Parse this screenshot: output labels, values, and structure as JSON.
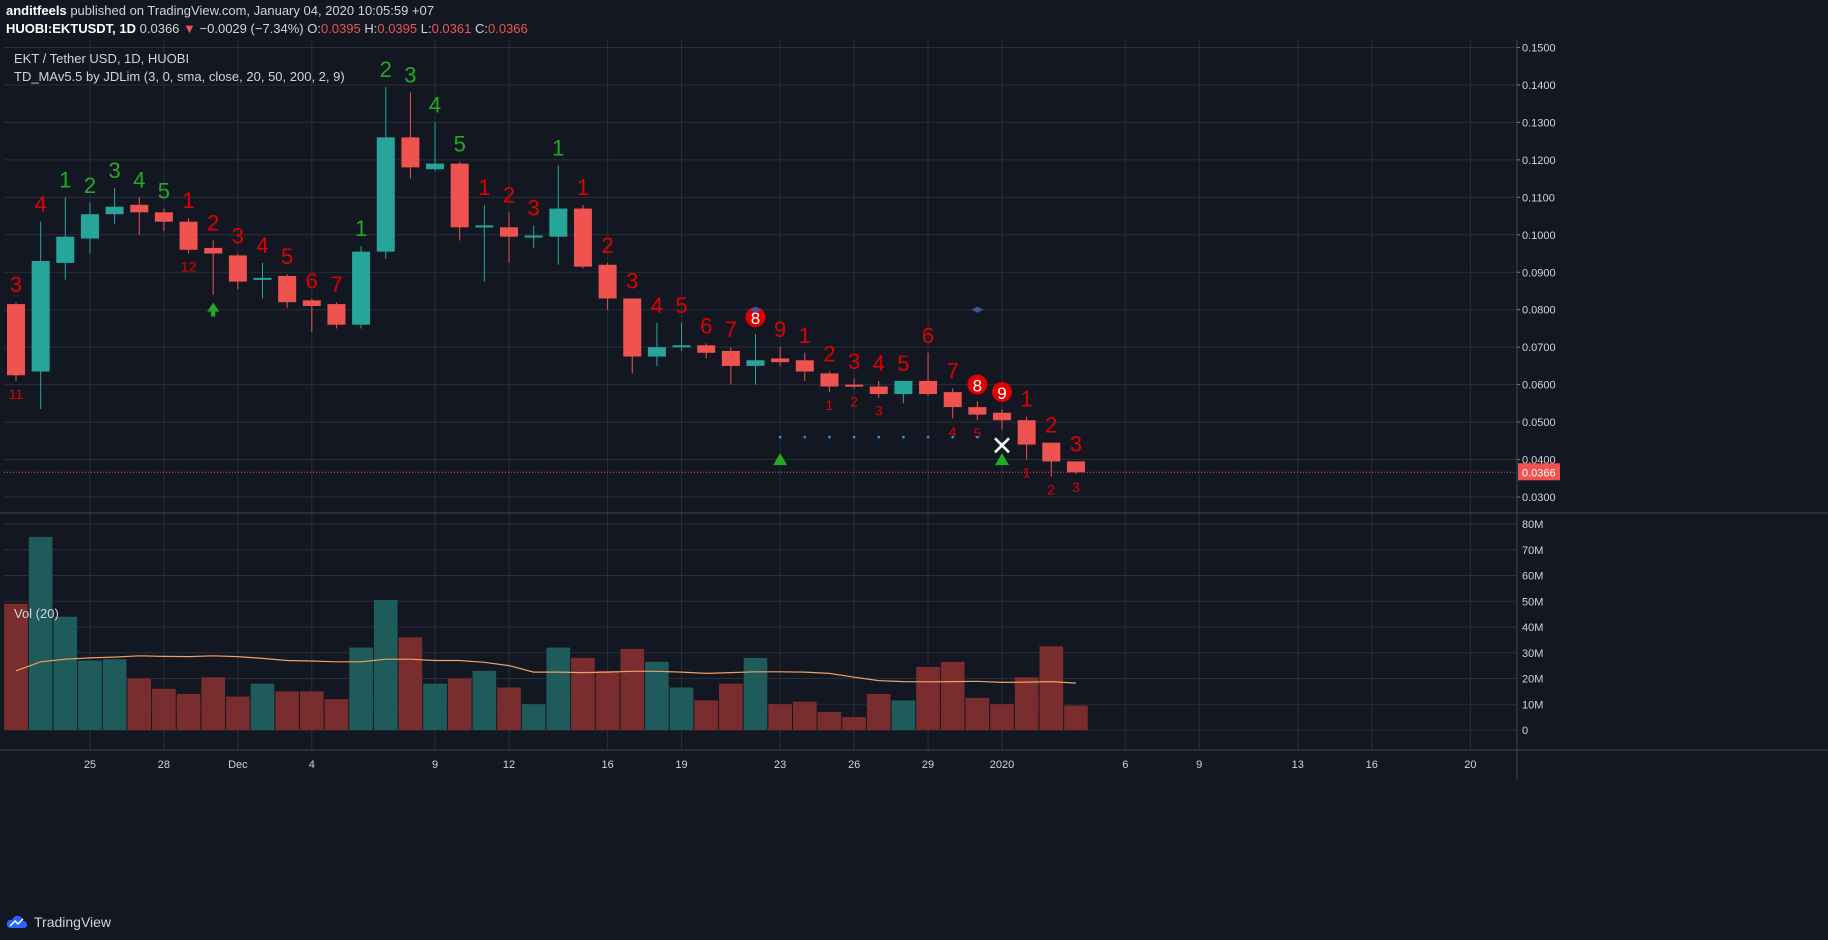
{
  "header": {
    "author": "anditfeels",
    "published_text": "published on TradingView.com, January 04, 2020 10:05:59 +07",
    "symbol": "HUOBI:EKTUSDT, 1D",
    "last": "0.0366",
    "change_arrow": "▼",
    "change": "−0.0029 (−7.34%)",
    "o_label": "O:",
    "o": "0.0395",
    "h_label": "H:",
    "h": "0.0395",
    "l_label": "L:",
    "l": "0.0361",
    "c_label": "C:",
    "c": "0.0366"
  },
  "legend": {
    "title": "EKT / Tether USD, 1D, HUOBI",
    "indicator": "TD_MAv5.5 by JDLim (3, 0, sma, close, 20, 50, 200, 2, 9)",
    "volume": "Vol (20)"
  },
  "footer": {
    "brand": "TradingView"
  },
  "colors": {
    "background": "#131722",
    "up": "#26a69a",
    "down": "#ef5350",
    "grid": "#2a2e39",
    "green_count": "#22ab22",
    "red_count": "#e00000",
    "ma": "#f0a060"
  },
  "chart_data": {
    "type": "candlestick",
    "price_axis": {
      "ylim": [
        0.026,
        0.152
      ],
      "ticks": [
        0.03,
        0.04,
        0.05,
        0.06,
        0.07,
        0.08,
        0.09,
        0.1,
        0.11,
        0.12,
        0.13,
        0.14,
        0.15
      ],
      "tick_labels": [
        "0.0300",
        "0.0400",
        "0.0500",
        "0.0600",
        "0.0700",
        "0.0800",
        "0.0900",
        "0.1000",
        "0.1100",
        "0.1200",
        "0.1300",
        "0.1400",
        "0.1500"
      ],
      "last_price_label": "0.0366",
      "last_price": 0.0366
    },
    "volume_axis": {
      "ylim": [
        0,
        80
      ],
      "ticks": [
        0,
        10,
        20,
        30,
        40,
        50,
        60,
        70,
        80
      ],
      "tick_labels": [
        "0",
        "10M",
        "20M",
        "30M",
        "40M",
        "50M",
        "60M",
        "70M",
        "80M"
      ]
    },
    "x_labels": [
      {
        "i": 3,
        "label": "25"
      },
      {
        "i": 6,
        "label": "28"
      },
      {
        "i": 9,
        "label": "Dec"
      },
      {
        "i": 12,
        "label": "4"
      },
      {
        "i": 17,
        "label": "9"
      },
      {
        "i": 20,
        "label": "12"
      },
      {
        "i": 24,
        "label": "16"
      },
      {
        "i": 27,
        "label": "19"
      },
      {
        "i": 31,
        "label": "23"
      },
      {
        "i": 34,
        "label": "26"
      },
      {
        "i": 37,
        "label": "29"
      },
      {
        "i": 40,
        "label": "2020"
      },
      {
        "i": 45,
        "label": "6"
      },
      {
        "i": 48,
        "label": "9"
      },
      {
        "i": 52,
        "label": "13"
      },
      {
        "i": 55,
        "label": "16"
      },
      {
        "i": 59,
        "label": "20"
      }
    ],
    "candles": [
      {
        "o": 0.0815,
        "h": 0.082,
        "l": 0.061,
        "c": 0.0625,
        "v": 49,
        "ma": 23,
        "top": "3",
        "tc": "r",
        "bot": "11",
        "bc": "r"
      },
      {
        "o": 0.0635,
        "h": 0.1035,
        "l": 0.0535,
        "c": 0.093,
        "v": 75,
        "ma": 26.5,
        "top": "4",
        "tc": "r"
      },
      {
        "o": 0.0925,
        "h": 0.11,
        "l": 0.088,
        "c": 0.0995,
        "v": 44,
        "ma": 27.5,
        "top": "1",
        "tc": "g"
      },
      {
        "o": 0.099,
        "h": 0.1085,
        "l": 0.095,
        "c": 0.1055,
        "v": 27,
        "ma": 28,
        "top": "2",
        "tc": "g"
      },
      {
        "o": 0.1055,
        "h": 0.1125,
        "l": 0.103,
        "c": 0.1075,
        "v": 27.5,
        "ma": 28.3,
        "top": "3",
        "tc": "g"
      },
      {
        "o": 0.108,
        "h": 0.11,
        "l": 0.1,
        "c": 0.106,
        "v": 20,
        "ma": 28.8,
        "top": "4",
        "tc": "g"
      },
      {
        "o": 0.106,
        "h": 0.107,
        "l": 0.101,
        "c": 0.1035,
        "v": 16,
        "ma": 28.6,
        "top": "5",
        "tc": "g"
      },
      {
        "o": 0.1035,
        "h": 0.1045,
        "l": 0.095,
        "c": 0.096,
        "v": 14,
        "ma": 28.5,
        "top": "1",
        "tc": "r",
        "bot": "12",
        "bc": "r"
      },
      {
        "o": 0.0965,
        "h": 0.0985,
        "l": 0.084,
        "c": 0.095,
        "v": 20.5,
        "ma": 28.8,
        "top": "2",
        "tc": "r"
      },
      {
        "o": 0.0945,
        "h": 0.095,
        "l": 0.0855,
        "c": 0.0875,
        "v": 13,
        "ma": 28.5,
        "top": "3",
        "tc": "r"
      },
      {
        "o": 0.088,
        "h": 0.0925,
        "l": 0.083,
        "c": 0.0885,
        "v": 18,
        "ma": 27.8,
        "top": "4",
        "tc": "r"
      },
      {
        "o": 0.089,
        "h": 0.0895,
        "l": 0.0805,
        "c": 0.082,
        "v": 15,
        "ma": 27,
        "top": "5",
        "tc": "r"
      },
      {
        "o": 0.0825,
        "h": 0.083,
        "l": 0.074,
        "c": 0.081,
        "v": 15,
        "ma": 26.8,
        "top": "6",
        "tc": "r"
      },
      {
        "o": 0.0815,
        "h": 0.082,
        "l": 0.075,
        "c": 0.076,
        "v": 12,
        "ma": 26.5,
        "top": "7",
        "tc": "r"
      },
      {
        "o": 0.076,
        "h": 0.097,
        "l": 0.075,
        "c": 0.0955,
        "v": 32,
        "ma": 26.5,
        "top": "1",
        "tc": "g"
      },
      {
        "o": 0.0955,
        "h": 0.1395,
        "l": 0.0935,
        "c": 0.126,
        "v": 50.5,
        "ma": 27.5,
        "top": "2",
        "tc": "g"
      },
      {
        "o": 0.126,
        "h": 0.138,
        "l": 0.115,
        "c": 0.118,
        "v": 36,
        "ma": 27.5,
        "top": "3",
        "tc": "g"
      },
      {
        "o": 0.1175,
        "h": 0.13,
        "l": 0.117,
        "c": 0.119,
        "v": 18,
        "ma": 27,
        "top": "4",
        "tc": "g"
      },
      {
        "o": 0.119,
        "h": 0.1195,
        "l": 0.0985,
        "c": 0.102,
        "v": 20,
        "ma": 27,
        "top": "5",
        "tc": "g"
      },
      {
        "o": 0.102,
        "h": 0.108,
        "l": 0.0875,
        "c": 0.1025,
        "v": 23,
        "ma": 26.3,
        "top": "1",
        "tc": "r"
      },
      {
        "o": 0.102,
        "h": 0.106,
        "l": 0.0925,
        "c": 0.0995,
        "v": 16.5,
        "ma": 25,
        "top": "2",
        "tc": "r"
      },
      {
        "o": 0.0995,
        "h": 0.1025,
        "l": 0.0965,
        "c": 0.0998,
        "v": 10,
        "ma": 22.5,
        "top": "3",
        "tc": "r"
      },
      {
        "o": 0.0995,
        "h": 0.1185,
        "l": 0.092,
        "c": 0.107,
        "v": 32,
        "ma": 22.5,
        "top": "1",
        "tc": "g"
      },
      {
        "o": 0.107,
        "h": 0.108,
        "l": 0.091,
        "c": 0.0915,
        "v": 28,
        "ma": 22.3,
        "top": "1",
        "tc": "r"
      },
      {
        "o": 0.092,
        "h": 0.0925,
        "l": 0.08,
        "c": 0.083,
        "v": 23,
        "ma": 22.5,
        "top": "2",
        "tc": "r"
      },
      {
        "o": 0.083,
        "h": 0.083,
        "l": 0.063,
        "c": 0.0675,
        "v": 31.5,
        "ma": 22.8,
        "top": "3",
        "tc": "r"
      },
      {
        "o": 0.0675,
        "h": 0.0765,
        "l": 0.065,
        "c": 0.07,
        "v": 26.5,
        "ma": 22.8,
        "top": "4",
        "tc": "r"
      },
      {
        "o": 0.07,
        "h": 0.0765,
        "l": 0.069,
        "c": 0.0705,
        "v": 16.5,
        "ma": 22.5,
        "top": "5",
        "tc": "r"
      },
      {
        "o": 0.0705,
        "h": 0.071,
        "l": 0.067,
        "c": 0.0685,
        "v": 11.5,
        "ma": 22,
        "top": "6",
        "tc": "r"
      },
      {
        "o": 0.069,
        "h": 0.07,
        "l": 0.06,
        "c": 0.065,
        "v": 18,
        "ma": 22.3,
        "top": "7",
        "tc": "r"
      },
      {
        "o": 0.065,
        "h": 0.0735,
        "l": 0.06,
        "c": 0.0665,
        "v": 28,
        "ma": 22.6,
        "top": "8",
        "tc": "r",
        "circle": true
      },
      {
        "o": 0.067,
        "h": 0.07,
        "l": 0.065,
        "c": 0.066,
        "v": 10,
        "ma": 22.6,
        "top": "9",
        "tc": "r"
      },
      {
        "o": 0.0665,
        "h": 0.0685,
        "l": 0.061,
        "c": 0.0635,
        "v": 11,
        "ma": 22.5,
        "top": "1",
        "tc": "r"
      },
      {
        "o": 0.063,
        "h": 0.0635,
        "l": 0.058,
        "c": 0.0595,
        "v": 7,
        "ma": 22,
        "top": "2",
        "tc": "r",
        "bot": "1",
        "bc": "r"
      },
      {
        "o": 0.06,
        "h": 0.0615,
        "l": 0.059,
        "c": 0.0595,
        "v": 5,
        "ma": 20.5,
        "top": "3",
        "tc": "r",
        "bot": "2",
        "bc": "r"
      },
      {
        "o": 0.0595,
        "h": 0.061,
        "l": 0.0565,
        "c": 0.0575,
        "v": 14,
        "ma": 19.2,
        "top": "4",
        "tc": "r",
        "bot": "3",
        "bc": "r"
      },
      {
        "o": 0.0575,
        "h": 0.061,
        "l": 0.055,
        "c": 0.061,
        "v": 11.5,
        "ma": 18.8,
        "top": "5",
        "tc": "r"
      },
      {
        "o": 0.061,
        "h": 0.0685,
        "l": 0.057,
        "c": 0.0575,
        "v": 24.5,
        "ma": 18.7,
        "top": "6",
        "tc": "r"
      },
      {
        "o": 0.058,
        "h": 0.059,
        "l": 0.051,
        "c": 0.054,
        "v": 26.5,
        "ma": 18.8,
        "top": "7",
        "tc": "r",
        "bot": "4",
        "bc": "r"
      },
      {
        "o": 0.054,
        "h": 0.0555,
        "l": 0.0505,
        "c": 0.052,
        "v": 12.5,
        "ma": 18.9,
        "top": "8",
        "tc": "r",
        "circle": true,
        "bot": "5",
        "bc": "r"
      },
      {
        "o": 0.0525,
        "h": 0.0535,
        "l": 0.048,
        "c": 0.0505,
        "v": 10,
        "ma": 18.5,
        "top": "9",
        "tc": "r",
        "circle": true
      },
      {
        "o": 0.0505,
        "h": 0.0515,
        "l": 0.04,
        "c": 0.044,
        "v": 20.5,
        "ma": 18.6,
        "top": "1",
        "tc": "r",
        "bot": "1",
        "bc": "r"
      },
      {
        "o": 0.0445,
        "h": 0.0445,
        "l": 0.0355,
        "c": 0.0395,
        "v": 32.5,
        "ma": 18.8,
        "top": "2",
        "tc": "r",
        "bot": "2",
        "bc": "r"
      },
      {
        "o": 0.0395,
        "h": 0.0395,
        "l": 0.0361,
        "c": 0.0366,
        "v": 9.5,
        "ma": 18.2,
        "top": "3",
        "tc": "r",
        "bot": "3",
        "bc": "r"
      }
    ]
  }
}
